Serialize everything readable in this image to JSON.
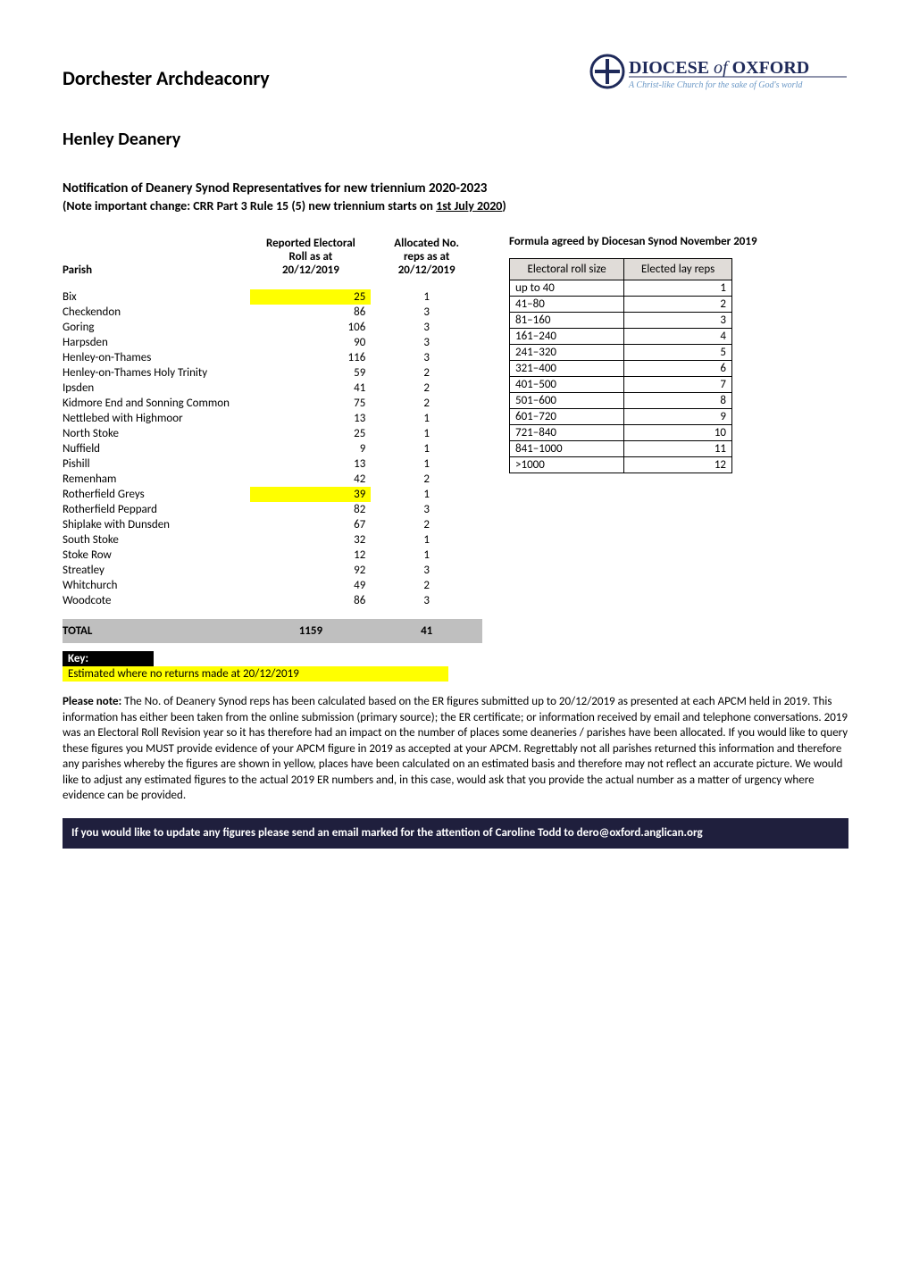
{
  "archdeaconry": "Dorchester Archdeaconry",
  "deanery": "Henley Deanery",
  "notification_title": "Notification of Deanery Synod Representatives for new triennium 2020-2023",
  "notification_sub_prefix": "(Note important change: CRR Part 3 Rule 15 (5) new triennium starts on ",
  "notification_sub_underlined": "1st July 2020",
  "notification_sub_suffix": ")",
  "logo": {
    "line1": "DIOCESE of OXFORD",
    "line2": "A Christ-like Church for the sake of God's world",
    "accent_color": "#1f2a5a",
    "tagline_color": "#6b98c6"
  },
  "main_table": {
    "headers": {
      "parish": "Parish",
      "roll": "Reported Electoral\nRoll as at\n20/12/2019",
      "reps": "Allocated No.\nreps as at\n20/12/2019"
    },
    "rows": [
      {
        "parish": "Bix",
        "roll": 25,
        "reps": 1,
        "highlight": true
      },
      {
        "parish": "Checkendon",
        "roll": 86,
        "reps": 3,
        "highlight": false
      },
      {
        "parish": "Goring",
        "roll": 106,
        "reps": 3,
        "highlight": false
      },
      {
        "parish": "Harpsden",
        "roll": 90,
        "reps": 3,
        "highlight": false
      },
      {
        "parish": "Henley-on-Thames",
        "roll": 116,
        "reps": 3,
        "highlight": false
      },
      {
        "parish": "Henley-on-Thames Holy Trinity",
        "roll": 59,
        "reps": 2,
        "highlight": false
      },
      {
        "parish": "Ipsden",
        "roll": 41,
        "reps": 2,
        "highlight": false
      },
      {
        "parish": "Kidmore End and Sonning Common",
        "roll": 75,
        "reps": 2,
        "highlight": false
      },
      {
        "parish": "Nettlebed with Highmoor",
        "roll": 13,
        "reps": 1,
        "highlight": false
      },
      {
        "parish": "North Stoke",
        "roll": 25,
        "reps": 1,
        "highlight": false
      },
      {
        "parish": "Nuffield",
        "roll": 9,
        "reps": 1,
        "highlight": false
      },
      {
        "parish": "Pishill",
        "roll": 13,
        "reps": 1,
        "highlight": false
      },
      {
        "parish": "Remenham",
        "roll": 42,
        "reps": 2,
        "highlight": false
      },
      {
        "parish": "Rotherfield Greys",
        "roll": 39,
        "reps": 1,
        "highlight": true
      },
      {
        "parish": "Rotherfield Peppard",
        "roll": 82,
        "reps": 3,
        "highlight": false
      },
      {
        "parish": "Shiplake with Dunsden",
        "roll": 67,
        "reps": 2,
        "highlight": false
      },
      {
        "parish": "South Stoke",
        "roll": 32,
        "reps": 1,
        "highlight": false
      },
      {
        "parish": "Stoke Row",
        "roll": 12,
        "reps": 1,
        "highlight": false
      },
      {
        "parish": "Streatley",
        "roll": 92,
        "reps": 3,
        "highlight": false
      },
      {
        "parish": "Whitchurch",
        "roll": 49,
        "reps": 2,
        "highlight": false
      },
      {
        "parish": "Woodcote",
        "roll": 86,
        "reps": 3,
        "highlight": false
      }
    ],
    "total": {
      "label": "TOTAL",
      "roll": 1159,
      "reps": 41
    },
    "highlight_color": "#ffff00",
    "total_row_bg": "#bfbfbf"
  },
  "formula": {
    "title": "Formula agreed by Diocesan Synod November 2019",
    "headers": {
      "range": "Electoral roll size",
      "reps": "Elected lay reps"
    },
    "header_bg": "#e0dcd8",
    "rows": [
      {
        "range": "up to 40",
        "reps": 1
      },
      {
        "range": "41–80",
        "reps": 2
      },
      {
        "range": "81–160",
        "reps": 3
      },
      {
        "range": "161–240",
        "reps": 4
      },
      {
        "range": "241–320",
        "reps": 5
      },
      {
        "range": "321–400",
        "reps": 6
      },
      {
        "range": "401–500",
        "reps": 7
      },
      {
        "range": "501–600",
        "reps": 8
      },
      {
        "range": "601–720",
        "reps": 9
      },
      {
        "range": "721–840",
        "reps": 10
      },
      {
        "range": "841–1000",
        "reps": 11
      },
      {
        "range": ">1000",
        "reps": 12
      }
    ]
  },
  "key": {
    "label": "Key:",
    "estimated_text": "Estimated where no returns made at  20/12/2019",
    "key_label_bg": "#000000",
    "key_label_color": "#ffffff",
    "key_row_bg": "#ffff00"
  },
  "note": {
    "lead": "Please note:",
    "body": " The No. of Deanery Synod reps has been calculated based on the ER figures submitted up to 20/12/2019 as presented at each APCM held in 2019. This information has either been taken from the online submission (primary source); the ER certificate; or information received by email and telephone conversations. 2019 was an Electoral Roll Revision year so it has therefore had an impact on the number of places some deaneries / parishes have been allocated. If you would like to query these figures you MUST provide evidence of your APCM figure in 2019 as accepted at your APCM. Regrettably not all parishes returned this information and therefore any parishes whereby the figures are shown in yellow, places have been calculated on an estimated basis and therefore may not reflect an accurate picture. We would like to adjust any estimated figures to the actual 2019 ER numbers and, in this case, would ask that you provide the actual number as a matter of urgency where evidence can be provided."
  },
  "footer": {
    "text": "If you would like to update any figures please send an email marked for the attention of Caroline Todd to dero@oxford.anglican.org",
    "bg": "#1f1f3d",
    "color": "#ffffff"
  }
}
